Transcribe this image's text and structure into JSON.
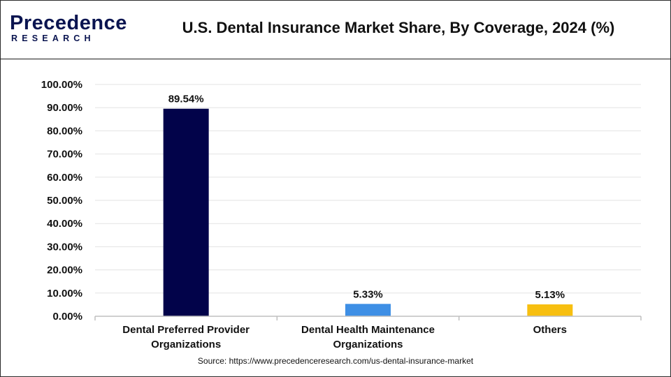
{
  "header": {
    "logo_line1": "Precedence",
    "logo_line2": "RESEARCH",
    "title": "U.S. Dental Insurance Market Share, By Coverage, 2024 (%)"
  },
  "colors": {
    "brand": "#0a1450",
    "accent_cyan": "#19b5e6",
    "grid": "#e3e3e3",
    "axis": "#bfbfbf"
  },
  "chart_data": {
    "type": "bar",
    "title": "U.S. Dental Insurance Market Share, By Coverage, 2024 (%)",
    "categories": [
      [
        "Dental Preferred Provider",
        "Organizations"
      ],
      [
        "Dental Health Maintenance",
        "Organizations"
      ],
      [
        "Others"
      ]
    ],
    "values": [
      89.54,
      5.33,
      5.13
    ],
    "value_labels": [
      "89.54%",
      "5.33%",
      "5.13%"
    ],
    "bar_colors": [
      "#02034a",
      "#3e8fe5",
      "#f7bf10"
    ],
    "y_ticks": [
      0,
      10,
      20,
      30,
      40,
      50,
      60,
      70,
      80,
      90,
      100
    ],
    "y_tick_labels": [
      "0.00%",
      "10.00%",
      "20.00%",
      "30.00%",
      "40.00%",
      "50.00%",
      "60.00%",
      "70.00%",
      "80.00%",
      "90.00%",
      "100.00%"
    ],
    "ylim": [
      0,
      100
    ],
    "grid": true,
    "xlabel": "",
    "ylabel": ""
  },
  "footer": {
    "source": "Source: https://www.precedenceresearch.com/us-dental-insurance-market"
  }
}
